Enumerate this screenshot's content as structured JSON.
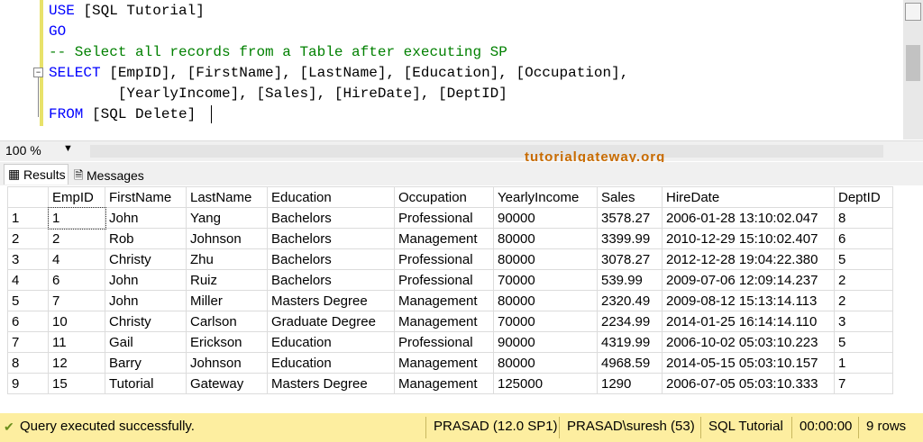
{
  "editor": {
    "lines": [
      [
        {
          "text": "USE",
          "color": "#0000ff"
        },
        {
          "text": " [SQL Tutorial]",
          "color": "#000000"
        }
      ],
      [
        {
          "text": "GO",
          "color": "#0000ff"
        }
      ],
      [
        {
          "text": "-- Select all records from a Table after executing SP",
          "color": "#008000"
        }
      ],
      [
        {
          "text": "SELECT",
          "color": "#0000ff"
        },
        {
          "text": " [EmpID], [FirstName], [LastName], [Education], [Occupation],",
          "color": "#000000"
        }
      ],
      [
        {
          "text": "        [YearlyIncome], [Sales], [HireDate], [DeptID]",
          "color": "#000000"
        }
      ],
      [
        {
          "text": "FROM",
          "color": "#0000ff"
        },
        {
          "text": " [SQL Delete]",
          "color": "#000000"
        }
      ]
    ],
    "zoom": "100 %",
    "watermark": "tutorialgateway.org"
  },
  "tabs": [
    "Results",
    "Messages"
  ],
  "table": {
    "columns": [
      "EmpID",
      "FirstName",
      "LastName",
      "Education",
      "Occupation",
      "YearlyIncome",
      "Sales",
      "HireDate",
      "DeptID"
    ],
    "rows": [
      [
        "1",
        "1",
        "John",
        "Yang",
        "Bachelors",
        "Professional",
        "90000",
        "3578.27",
        "2006-01-28 13:10:02.047",
        "8"
      ],
      [
        "2",
        "2",
        "Rob",
        "Johnson",
        "Bachelors",
        "Management",
        "80000",
        "3399.99",
        "2010-12-29 15:10:02.407",
        "6"
      ],
      [
        "3",
        "4",
        "Christy",
        "Zhu",
        "Bachelors",
        "Professional",
        "80000",
        "3078.27",
        "2012-12-28 19:04:22.380",
        "5"
      ],
      [
        "4",
        "6",
        "John",
        "Ruiz",
        "Bachelors",
        "Professional",
        "70000",
        "539.99",
        "2009-07-06 12:09:14.237",
        "2"
      ],
      [
        "5",
        "7",
        "John",
        "Miller",
        "Masters Degree",
        "Management",
        "80000",
        "2320.49",
        "2009-08-12 15:13:14.113",
        "2"
      ],
      [
        "6",
        "10",
        "Christy",
        "Carlson",
        "Graduate Degree",
        "Management",
        "70000",
        "2234.99",
        "2014-01-25 16:14:14.110",
        "3"
      ],
      [
        "7",
        "11",
        "Gail",
        "Erickson",
        "Education",
        "Professional",
        "90000",
        "4319.99",
        "2006-10-02 05:03:10.223",
        "5"
      ],
      [
        "8",
        "12",
        "Barry",
        "Johnson",
        "Education",
        "Management",
        "80000",
        "4968.59",
        "2014-05-15 05:03:10.157",
        "1"
      ],
      [
        "9",
        "15",
        "Tutorial",
        "Gateway",
        "Masters Degree",
        "Management",
        "125000",
        "1290",
        "2006-07-05 05:03:10.333",
        "7"
      ]
    ]
  },
  "status": {
    "message": "Query executed successfully.",
    "items": [
      "PRASAD (12.0 SP1)",
      "PRASAD\\suresh (53)",
      "SQL Tutorial",
      "00:00:00",
      "9 rows"
    ]
  }
}
